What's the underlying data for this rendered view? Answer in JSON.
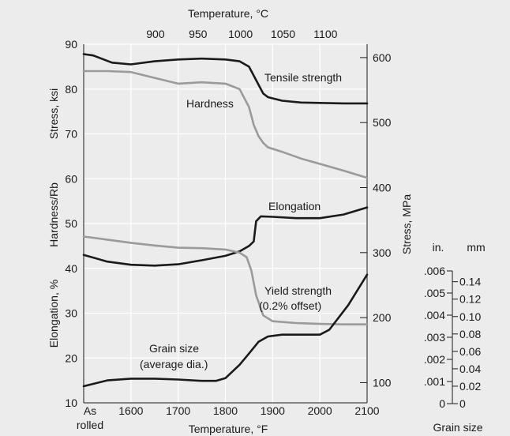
{
  "chart_data": {
    "type": "line",
    "title": "",
    "background": "#ececec",
    "grid": true,
    "x_bottom": {
      "title": "Temperature, °F",
      "range": [
        1500,
        2100
      ],
      "ticks": [
        1500,
        1600,
        1700,
        1800,
        1900,
        2000,
        2100
      ],
      "first_tick_label": [
        "As",
        "rolled"
      ]
    },
    "x_top": {
      "title": "Temperature, °C",
      "ticks": [
        900,
        950,
        1000,
        1050,
        1100
      ]
    },
    "y_left": {
      "range": [
        10,
        90
      ],
      "ticks": [
        10,
        20,
        30,
        40,
        50,
        60,
        70,
        80,
        90
      ],
      "titles": [
        "Stress, ksi",
        "Hardness/Rb",
        "Elongation, %"
      ]
    },
    "y_right": {
      "title": "Stress, MPa",
      "ticks": [
        100,
        200,
        300,
        400,
        500,
        600
      ]
    },
    "grain_size_axes": {
      "title": "Grain size",
      "inch_header": "in.",
      "inch_ticks": [
        "0",
        ".001",
        ".002",
        ".003",
        ".004",
        ".005",
        ".006"
      ],
      "mm_header": "mm",
      "mm_ticks": [
        "0",
        "0.02",
        "0.04",
        "0.06",
        "0.08",
        "0.10",
        "0.12",
        "0.14"
      ]
    },
    "series": [
      {
        "name": "Tensile strength",
        "color": "#1a1a1a",
        "x": [
          1500,
          1520,
          1560,
          1600,
          1650,
          1700,
          1750,
          1800,
          1830,
          1850,
          1870,
          1880,
          1890,
          1920,
          1960,
          2000,
          2050,
          2100
        ],
        "y": [
          87.8,
          87.5,
          85.9,
          85.5,
          86.2,
          86.6,
          86.8,
          86.6,
          86.2,
          85,
          81,
          79,
          78.2,
          77.4,
          77,
          76.9,
          76.8,
          76.8
        ]
      },
      {
        "name": "Hardness",
        "color": "#9a9a9a",
        "x": [
          1500,
          1550,
          1600,
          1650,
          1700,
          1750,
          1800,
          1830,
          1850,
          1860,
          1870,
          1880,
          1890,
          1920,
          1960,
          2000,
          2050,
          2100
        ],
        "y": [
          84,
          84,
          83.8,
          82.5,
          81.2,
          81.5,
          81.2,
          80,
          76,
          72,
          69.5,
          68,
          67,
          66,
          64.5,
          63.3,
          61.8,
          60.2
        ]
      },
      {
        "name": "Elongation",
        "color": "#1a1a1a",
        "x": [
          1500,
          1550,
          1600,
          1650,
          1700,
          1750,
          1800,
          1830,
          1850,
          1860,
          1865,
          1875,
          1900,
          1950,
          2000,
          2050,
          2100
        ],
        "y": [
          43,
          41.5,
          40.8,
          40.6,
          40.9,
          41.8,
          42.8,
          43.8,
          45,
          46,
          50.5,
          51.6,
          51.5,
          51.2,
          51.2,
          52,
          53.6
        ]
      },
      {
        "name": "Yield strength (0.2% offset)",
        "color": "#9a9a9a",
        "x": [
          1500,
          1550,
          1600,
          1650,
          1700,
          1750,
          1800,
          1830,
          1845,
          1855,
          1865,
          1880,
          1900,
          1950,
          2000,
          2050,
          2100
        ],
        "y": [
          47.1,
          46.4,
          45.7,
          45.1,
          44.6,
          44.5,
          44.2,
          43.5,
          42.5,
          39.5,
          34,
          29.5,
          28.2,
          27.8,
          27.6,
          27.5,
          27.5
        ]
      },
      {
        "name": "Grain size (average dia.)",
        "color": "#1a1a1a",
        "x": [
          1500,
          1550,
          1600,
          1650,
          1700,
          1750,
          1780,
          1800,
          1830,
          1850,
          1870,
          1890,
          1920,
          1960,
          2000,
          2020,
          2060,
          2100
        ],
        "y": [
          13.7,
          15,
          15.4,
          15.4,
          15.2,
          14.9,
          14.9,
          15.5,
          18.5,
          21,
          23.6,
          24.8,
          25.2,
          25.2,
          25.2,
          26.3,
          31.8,
          38.6
        ]
      }
    ],
    "annotations": [
      {
        "lines": [
          "Tensile strength"
        ]
      },
      {
        "lines": [
          "Hardness"
        ]
      },
      {
        "lines": [
          "Elongation"
        ]
      },
      {
        "lines": [
          "Yield strength",
          "(0.2% offset)"
        ]
      },
      {
        "lines": [
          "Grain size",
          "(average dia.)"
        ]
      }
    ]
  }
}
